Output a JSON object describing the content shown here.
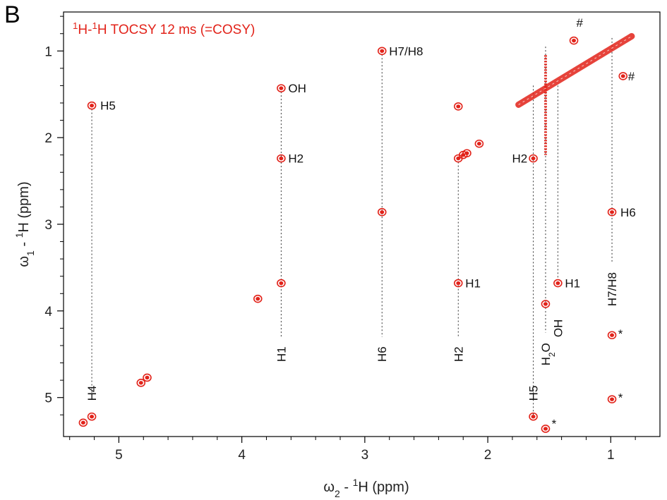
{
  "panel_label": "B",
  "chart_data": {
    "type": "scatter",
    "title": "1H-1H TOCSY 12 ms (=COSY)",
    "xlabel": "ω2 - 1H  (ppm)",
    "ylabel": "ω1 - 1H  (ppm)",
    "x_axis": {
      "reversed": true,
      "range": [
        5.45,
        0.6
      ],
      "ticks": [
        5,
        4,
        3,
        2,
        1
      ],
      "tick_labels": [
        "5",
        "4",
        "3",
        "2",
        "1"
      ]
    },
    "y_axis": {
      "reversed": true,
      "range": [
        0.55,
        5.45
      ],
      "ticks": [
        1,
        2,
        3,
        4,
        5
      ],
      "tick_labels": [
        "1",
        "2",
        "3",
        "4",
        "5"
      ]
    },
    "grid": false,
    "color": "#e2231a",
    "peaks": [
      {
        "x": 5.22,
        "y": 1.63
      },
      {
        "x": 5.22,
        "y": 5.22
      },
      {
        "x": 4.77,
        "y": 4.77
      },
      {
        "x": 4.82,
        "y": 4.83
      },
      {
        "x": 5.29,
        "y": 5.29
      },
      {
        "x": 3.87,
        "y": 3.86
      },
      {
        "x": 3.68,
        "y": 1.43
      },
      {
        "x": 3.68,
        "y": 2.24
      },
      {
        "x": 3.68,
        "y": 3.68
      },
      {
        "x": 2.86,
        "y": 1.0
      },
      {
        "x": 2.86,
        "y": 2.86
      },
      {
        "x": 2.24,
        "y": 1.64
      },
      {
        "x": 2.24,
        "y": 2.24
      },
      {
        "x": 2.2,
        "y": 2.2
      },
      {
        "x": 2.17,
        "y": 2.18
      },
      {
        "x": 2.24,
        "y": 3.68
      },
      {
        "x": 2.07,
        "y": 2.07
      },
      {
        "x": 1.63,
        "y": 2.24
      },
      {
        "x": 1.63,
        "y": 5.22
      },
      {
        "x": 1.53,
        "y": 3.92
      },
      {
        "x": 1.53,
        "y": 5.36
      },
      {
        "x": 1.43,
        "y": 3.68
      },
      {
        "x": 1.3,
        "y": 0.88
      },
      {
        "x": 0.9,
        "y": 1.29
      },
      {
        "x": 0.99,
        "y": 2.86
      },
      {
        "x": 0.99,
        "y": 4.28
      },
      {
        "x": 0.99,
        "y": 5.02
      }
    ],
    "diagonal_band": {
      "from": [
        1.75,
        1.62
      ],
      "to": [
        0.83,
        0.83
      ]
    },
    "water_streak": {
      "x": 1.53,
      "y_from": 1.05,
      "y_to": 2.2
    },
    "dotted_lines": [
      {
        "x": 5.22,
        "y_from": 1.63,
        "y_to": 5.0
      },
      {
        "x": 3.68,
        "y_from": 1.43,
        "y_to": 4.3
      },
      {
        "x": 2.86,
        "y_from": 1.0,
        "y_to": 4.3
      },
      {
        "x": 2.24,
        "y_from": 2.24,
        "y_to": 4.3
      },
      {
        "x": 1.63,
        "y_from": 1.4,
        "y_to": 5.2
      },
      {
        "x": 1.53,
        "y_from": 0.95,
        "y_to": 4.25
      },
      {
        "x": 1.43,
        "y_from": 1.4,
        "y_to": 3.62
      },
      {
        "x": 0.99,
        "y_from": 0.85,
        "y_to": 3.45
      }
    ],
    "annotations": [
      {
        "text": "H5",
        "x": 5.22,
        "y": 1.63,
        "rotate": false,
        "dx": 12,
        "dy": 6
      },
      {
        "text": "OH",
        "x": 3.68,
        "y": 1.43,
        "rotate": false,
        "dx": 10,
        "dy": 6
      },
      {
        "text": "H2",
        "x": 3.68,
        "y": 2.24,
        "rotate": false,
        "dx": 10,
        "dy": 6
      },
      {
        "text": "H7/H8",
        "x": 2.86,
        "y": 1.0,
        "rotate": false,
        "dx": 10,
        "dy": 6
      },
      {
        "text": "H1",
        "x": 2.24,
        "y": 3.68,
        "rotate": false,
        "dx": 10,
        "dy": 6
      },
      {
        "text": "H2",
        "x": 1.63,
        "y": 2.24,
        "rotate": false,
        "dx": -30,
        "dy": 6
      },
      {
        "text": "H1",
        "x": 1.43,
        "y": 3.68,
        "rotate": false,
        "dx": 10,
        "dy": 6
      },
      {
        "text": "H6",
        "x": 0.99,
        "y": 2.86,
        "rotate": false,
        "dx": 12,
        "dy": 6
      },
      {
        "text": "#",
        "x": 1.28,
        "y": 0.72,
        "rotate": false,
        "dx": 0,
        "dy": 0
      },
      {
        "text": "#",
        "x": 0.86,
        "y": 1.29,
        "rotate": false,
        "dx": 0,
        "dy": 6
      },
      {
        "text": "*",
        "x": 0.94,
        "y": 4.26,
        "rotate": false,
        "dx": 0,
        "dy": 6
      },
      {
        "text": "*",
        "x": 0.94,
        "y": 5.0,
        "rotate": false,
        "dx": 0,
        "dy": 6
      },
      {
        "text": "*",
        "x": 1.48,
        "y": 5.3,
        "rotate": false,
        "dx": 0,
        "dy": 6
      },
      {
        "text": "H4",
        "x": 5.22,
        "y": 4.95,
        "rotate": true,
        "dx": 0,
        "dy": 0
      },
      {
        "text": "H1",
        "x": 3.68,
        "y": 4.5,
        "rotate": true,
        "dx": 0,
        "dy": 0
      },
      {
        "text": "H6",
        "x": 2.86,
        "y": 4.5,
        "rotate": true,
        "dx": 0,
        "dy": 0
      },
      {
        "text": "H2",
        "x": 2.24,
        "y": 4.5,
        "rotate": true,
        "dx": 0,
        "dy": 0
      },
      {
        "text": "H5",
        "x": 1.63,
        "y": 4.95,
        "rotate": true,
        "dx": 0,
        "dy": 0
      },
      {
        "text": "H2O",
        "x": 1.53,
        "y": 4.5,
        "rotate": true,
        "dx": 0,
        "dy": 0
      },
      {
        "text": "OH",
        "x": 1.43,
        "y": 4.2,
        "rotate": true,
        "dx": 0,
        "dy": 0
      },
      {
        "text": "H7/H8",
        "x": 0.99,
        "y": 3.75,
        "rotate": true,
        "dx": 0,
        "dy": 0
      }
    ]
  }
}
